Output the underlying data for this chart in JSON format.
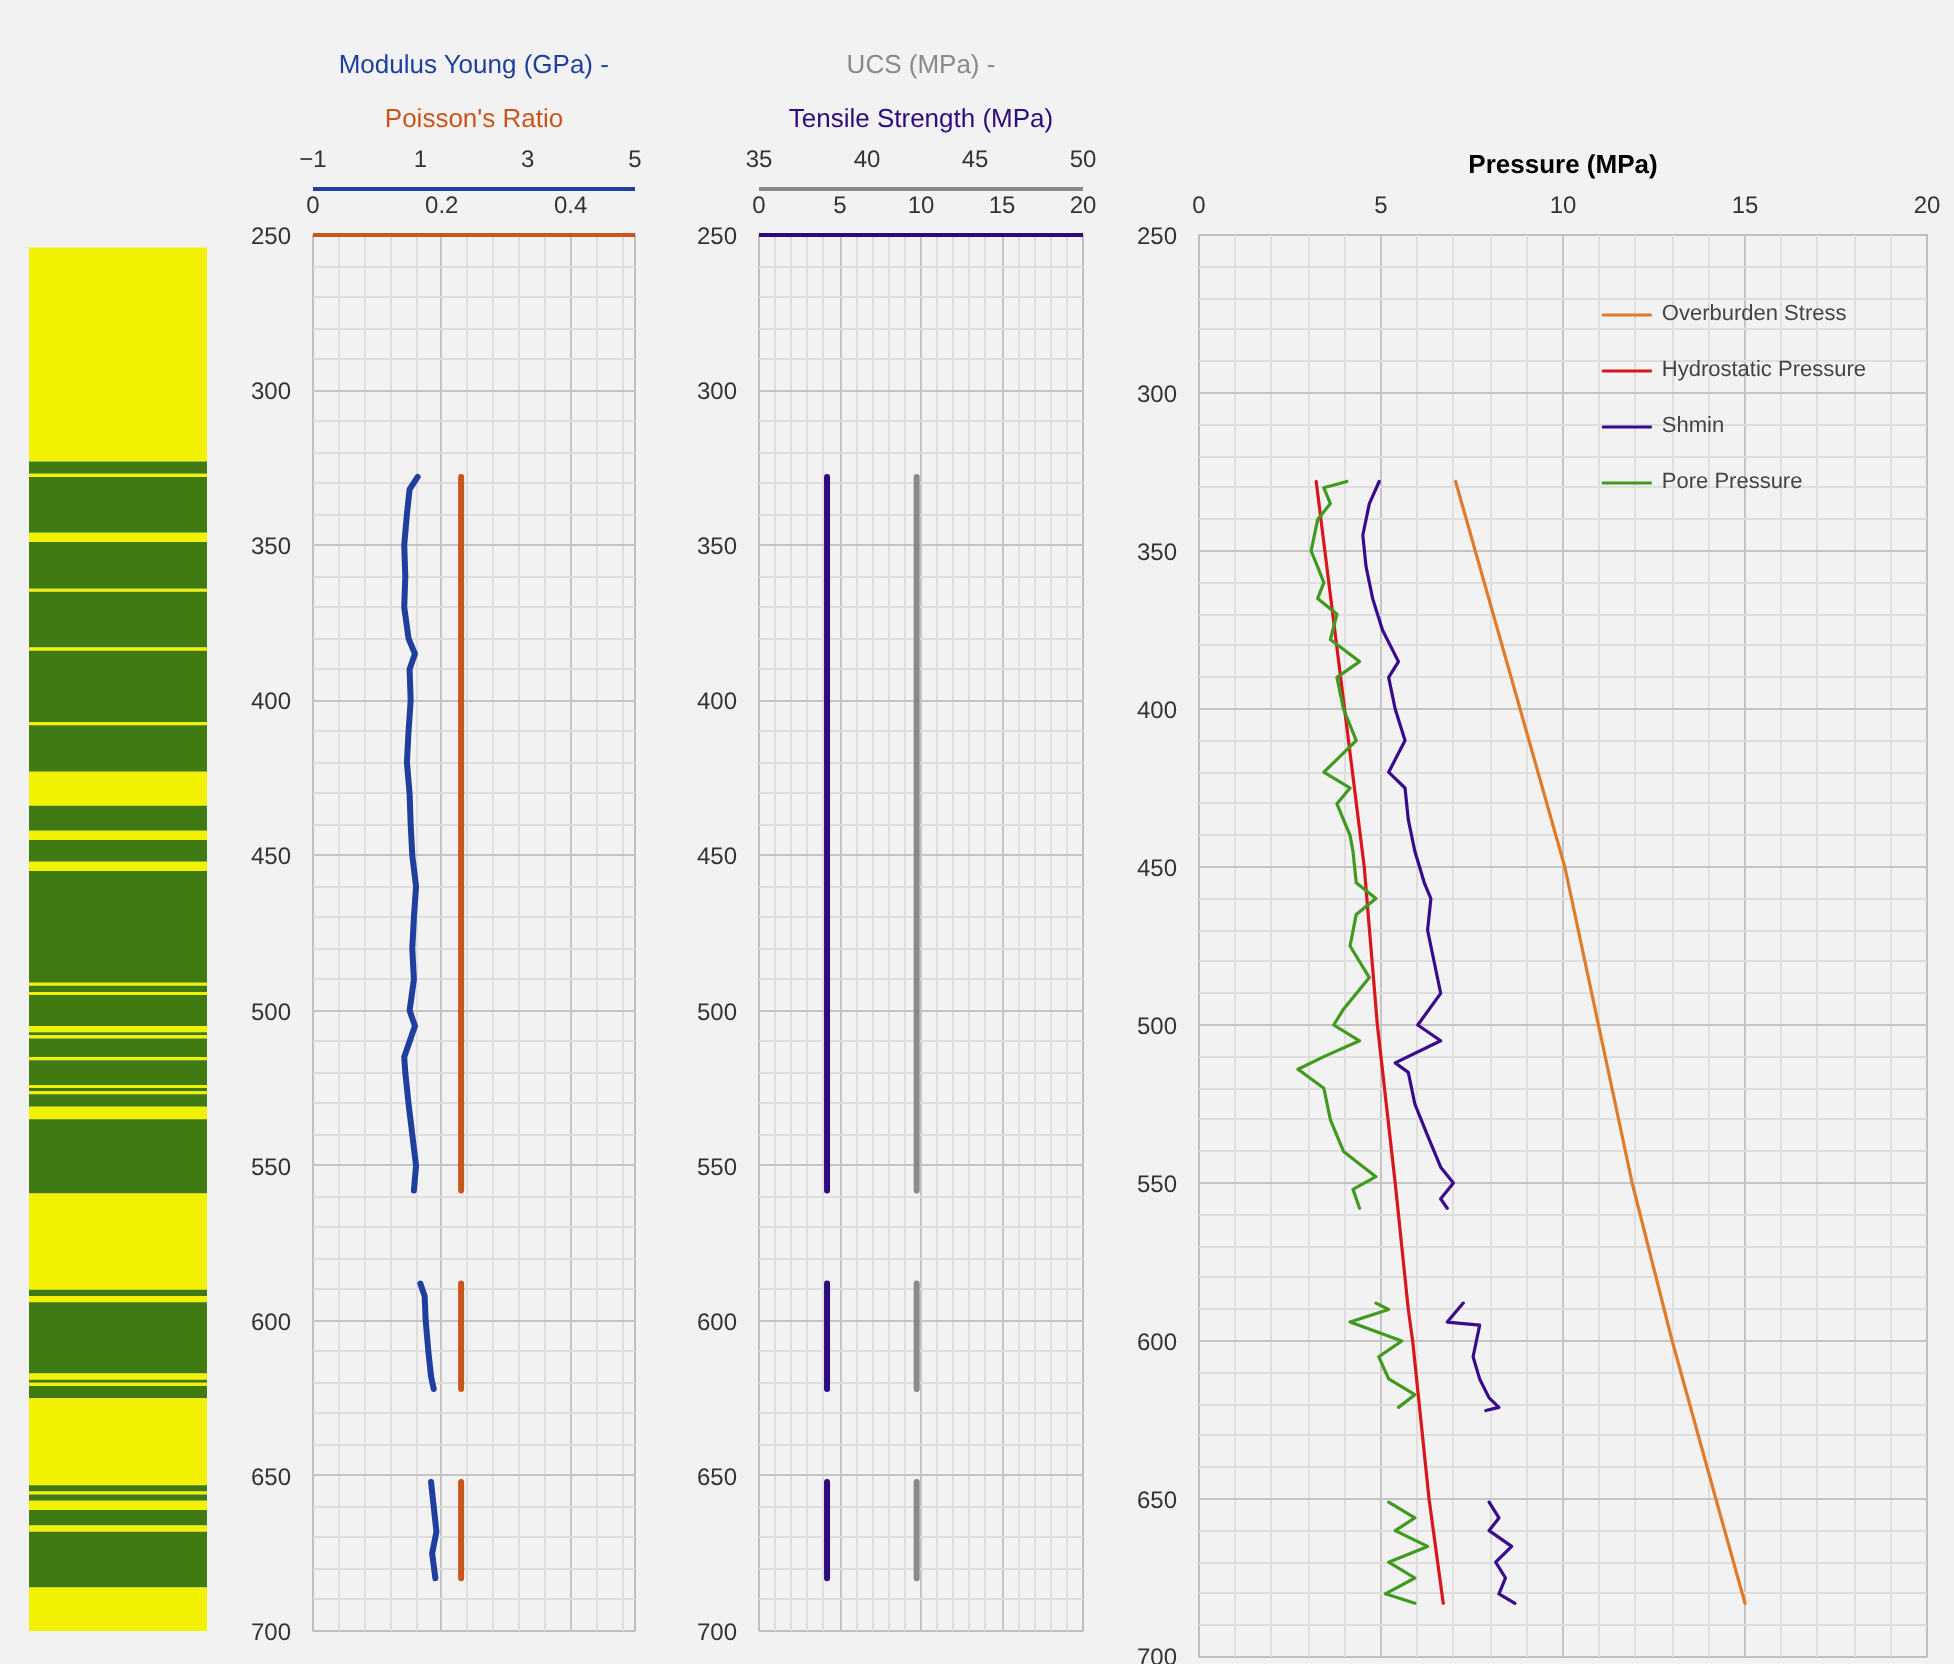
{
  "chart_data": [
    {
      "type": "bar",
      "categories": [
        null
      ],
      "ylim": [
        700,
        250
      ],
      "yticks": [
        250,
        300,
        350,
        400,
        450,
        500,
        550,
        600,
        650,
        700
      ],
      "tick_labels": false,
      "series": [
        {
          "color": "#f2f200",
          "base": [
            254
          ],
          "values": [
            69
          ]
        },
        {
          "color": "#3f7a12",
          "base": [
            323
          ],
          "values": [
            4
          ]
        },
        {
          "color": "#f2f200",
          "base": [
            327
          ],
          "values": [
            1
          ]
        },
        {
          "color": "#3f7a12",
          "base": [
            328
          ],
          "values": [
            18
          ]
        },
        {
          "color": "#f2f200",
          "base": [
            346
          ],
          "values": [
            3
          ]
        },
        {
          "color": "#3f7a12",
          "base": [
            349
          ],
          "values": [
            15
          ]
        },
        {
          "color": "#f2f200",
          "base": [
            364
          ],
          "values": [
            1
          ]
        },
        {
          "color": "#3f7a12",
          "base": [
            365
          ],
          "values": [
            18
          ]
        },
        {
          "color": "#f2f200",
          "base": [
            383
          ],
          "values": [
            1
          ]
        },
        {
          "color": "#3f7a12",
          "base": [
            384
          ],
          "values": [
            23
          ]
        },
        {
          "color": "#f2f200",
          "base": [
            407
          ],
          "values": [
            1
          ]
        },
        {
          "color": "#3f7a12",
          "base": [
            408
          ],
          "values": [
            15
          ]
        },
        {
          "color": "#f2f200",
          "base": [
            423
          ],
          "values": [
            11
          ]
        },
        {
          "color": "#3f7a12",
          "base": [
            434
          ],
          "values": [
            8
          ]
        },
        {
          "color": "#f2f200",
          "base": [
            442
          ],
          "values": [
            3
          ]
        },
        {
          "color": "#3f7a12",
          "base": [
            445
          ],
          "values": [
            7
          ]
        },
        {
          "color": "#f2f200",
          "base": [
            452
          ],
          "values": [
            3
          ]
        },
        {
          "color": "#3f7a12",
          "base": [
            455
          ],
          "values": [
            36
          ]
        },
        {
          "color": "#f2f200",
          "base": [
            491
          ],
          "values": [
            1
          ]
        },
        {
          "color": "#3f7a12",
          "base": [
            492
          ],
          "values": [
            2
          ]
        },
        {
          "color": "#f2f200",
          "base": [
            494
          ],
          "values": [
            1
          ]
        },
        {
          "color": "#3f7a12",
          "base": [
            495
          ],
          "values": [
            10
          ]
        },
        {
          "color": "#f2f200",
          "base": [
            505
          ],
          "values": [
            2
          ]
        },
        {
          "color": "#3f7a12",
          "base": [
            507
          ],
          "values": [
            1
          ]
        },
        {
          "color": "#f2f200",
          "base": [
            508
          ],
          "values": [
            1
          ]
        },
        {
          "color": "#3f7a12",
          "base": [
            509
          ],
          "values": [
            6
          ]
        },
        {
          "color": "#f2f200",
          "base": [
            515
          ],
          "values": [
            1
          ]
        },
        {
          "color": "#3f7a12",
          "base": [
            516
          ],
          "values": [
            8
          ]
        },
        {
          "color": "#f2f200",
          "base": [
            524
          ],
          "values": [
            1
          ]
        },
        {
          "color": "#3f7a12",
          "base": [
            525
          ],
          "values": [
            1
          ]
        },
        {
          "color": "#f2f200",
          "base": [
            526
          ],
          "values": [
            1
          ]
        },
        {
          "color": "#3f7a12",
          "base": [
            527
          ],
          "values": [
            4
          ]
        },
        {
          "color": "#f2f200",
          "base": [
            531
          ],
          "values": [
            4
          ]
        },
        {
          "color": "#3f7a12",
          "base": [
            535
          ],
          "values": [
            24
          ]
        },
        {
          "color": "#f2f200",
          "base": [
            559
          ],
          "values": [
            31
          ]
        },
        {
          "color": "#3f7a12",
          "base": [
            590
          ],
          "values": [
            2
          ]
        },
        {
          "color": "#f2f200",
          "base": [
            592
          ],
          "values": [
            2
          ]
        },
        {
          "color": "#3f7a12",
          "base": [
            594
          ],
          "values": [
            23
          ]
        },
        {
          "color": "#f2f200",
          "base": [
            617
          ],
          "values": [
            2
          ]
        },
        {
          "color": "#3f7a12",
          "base": [
            619
          ],
          "values": [
            1
          ]
        },
        {
          "color": "#f2f200",
          "base": [
            620
          ],
          "values": [
            1
          ]
        },
        {
          "color": "#3f7a12",
          "base": [
            621
          ],
          "values": [
            4
          ]
        },
        {
          "color": "#f2f200",
          "base": [
            625
          ],
          "values": [
            28
          ]
        },
        {
          "color": "#3f7a12",
          "base": [
            653
          ],
          "values": [
            2
          ]
        },
        {
          "color": "#f2f200",
          "base": [
            655
          ],
          "values": [
            1
          ]
        },
        {
          "color": "#3f7a12",
          "base": [
            656
          ],
          "values": [
            2
          ]
        },
        {
          "color": "#f2f200",
          "base": [
            658
          ],
          "values": [
            3
          ]
        },
        {
          "color": "#3f7a12",
          "base": [
            661
          ],
          "values": [
            5
          ]
        },
        {
          "color": "#f2f200",
          "base": [
            666
          ],
          "values": [
            2
          ]
        },
        {
          "color": "#3f7a12",
          "base": [
            668
          ],
          "values": [
            18
          ]
        },
        {
          "color": "#f2f200",
          "base": [
            686
          ],
          "values": [
            14
          ]
        }
      ]
    },
    {
      "type": "line",
      "orientation": "horizontal",
      "xlabel": "Poisson's Ratio",
      "x2label": "Modulus Young (GPa) -",
      "xlim": [
        0,
        0.5
      ],
      "xticks": [
        0,
        0.2,
        0.4
      ],
      "x2lim": [
        -1,
        5
      ],
      "x2ticks": [
        -1,
        1,
        3,
        5
      ],
      "ylim": [
        700,
        250
      ],
      "yticks": [
        250,
        300,
        350,
        400,
        450,
        500,
        550,
        600,
        650,
        700
      ],
      "grid": true,
      "series": [
        {
          "color": "#1f3f9f",
          "axis": "x2",
          "x": [
            328,
            332,
            340,
            350,
            360,
            370,
            380,
            385,
            390,
            400,
            410,
            420,
            430,
            440,
            450,
            460,
            470,
            480,
            490,
            500,
            505,
            515,
            520,
            530,
            540,
            550,
            558,
            573,
            588,
            592,
            600,
            610,
            618,
            622,
            637,
            652,
            660,
            668,
            675,
            683
          ],
          "values": [
            0.95,
            0.8,
            0.75,
            0.7,
            0.72,
            0.7,
            0.78,
            0.9,
            0.8,
            0.82,
            0.78,
            0.75,
            0.8,
            0.82,
            0.85,
            0.92,
            0.88,
            0.85,
            0.88,
            0.8,
            0.9,
            0.7,
            0.72,
            0.78,
            0.85,
            0.92,
            0.88,
            null,
            1.0,
            1.08,
            1.1,
            1.15,
            1.2,
            1.25,
            null,
            1.2,
            1.25,
            1.3,
            1.22,
            1.28
          ]
        },
        {
          "color": "#c8561a",
          "x": [
            328,
            558,
            573,
            588,
            622,
            637,
            652,
            683
          ],
          "values": [
            0.23,
            0.23,
            null,
            0.23,
            0.23,
            null,
            0.23,
            0.23
          ]
        }
      ]
    },
    {
      "type": "line",
      "orientation": "horizontal",
      "xlabel": "Tensile Strength (MPa)",
      "x2label": "UCS (MPa) -",
      "xlim": [
        0,
        20
      ],
      "xticks": [
        0,
        5,
        10,
        15,
        20
      ],
      "x2lim": [
        35,
        50
      ],
      "x2ticks": [
        35,
        40,
        45,
        50
      ],
      "ylim": [
        700,
        250
      ],
      "yticks": [
        250,
        300,
        350,
        400,
        450,
        500,
        550,
        600,
        650,
        700
      ],
      "grid": true,
      "series": [
        {
          "color": "#2e0a7a",
          "x": [
            328,
            558,
            573,
            588,
            622,
            637,
            652,
            683
          ],
          "values": [
            4.2,
            4.2,
            null,
            4.2,
            4.2,
            null,
            4.2,
            4.2
          ]
        },
        {
          "color": "#8a8a8a",
          "axis": "x2",
          "x": [
            328,
            558,
            573,
            588,
            622,
            637,
            652,
            683
          ],
          "values": [
            42.3,
            42.3,
            null,
            42.3,
            42.3,
            null,
            42.3,
            42.3
          ]
        }
      ]
    },
    {
      "type": "line",
      "orientation": "horizontal",
      "xlabel": "Pressure (MPa)",
      "xlim": [
        0,
        20
      ],
      "xticks": [
        0,
        5,
        10,
        15,
        20
      ],
      "ylim": [
        700,
        250
      ],
      "yticks": [
        250,
        300,
        350,
        400,
        450,
        500,
        550,
        600,
        650,
        700
      ],
      "grid": true,
      "legend": "top right",
      "series": [
        {
          "name": "Overburden Stress",
          "color": "#e07b2a",
          "x": [
            328,
            450,
            550,
            600,
            650,
            683
          ],
          "values": [
            7.05,
            10.05,
            11.9,
            13.0,
            14.2,
            15.0
          ]
        },
        {
          "name": "Hydrostatic Pressure",
          "color": "#d8161b",
          "x": [
            328,
            450,
            500,
            550,
            590,
            600,
            650,
            683
          ],
          "values": [
            3.22,
            4.54,
            4.9,
            5.39,
            5.75,
            5.87,
            6.32,
            6.71
          ]
        },
        {
          "name": "Shmin",
          "color": "#3a0a8c",
          "x": [
            328,
            335,
            345,
            355,
            365,
            375,
            385,
            390,
            400,
            410,
            420,
            425,
            435,
            445,
            455,
            460,
            470,
            480,
            490,
            500,
            505,
            512,
            515,
            525,
            535,
            545,
            550,
            555,
            558,
            573,
            588,
            594,
            595,
            605,
            612,
            618,
            621,
            622,
            637,
            651,
            656,
            660,
            665,
            670,
            675,
            680,
            683
          ],
          "values": [
            4.95,
            4.68,
            4.5,
            4.59,
            4.77,
            5.04,
            5.48,
            5.21,
            5.39,
            5.66,
            5.21,
            5.66,
            5.75,
            5.93,
            6.19,
            6.37,
            6.28,
            6.46,
            6.64,
            6.01,
            6.64,
            5.39,
            5.75,
            5.93,
            6.28,
            6.64,
            6.99,
            6.64,
            6.82,
            null,
            7.26,
            6.82,
            7.71,
            7.53,
            7.71,
            7.97,
            8.24,
            7.88,
            null,
            7.97,
            8.24,
            7.97,
            8.59,
            8.15,
            8.42,
            8.24,
            8.68
          ]
        },
        {
          "name": "Pore Pressure",
          "color": "#3f9a1e",
          "x": [
            328,
            330,
            335,
            340,
            350,
            355,
            360,
            365,
            370,
            378,
            385,
            390,
            400,
            410,
            420,
            425,
            430,
            440,
            445,
            455,
            460,
            465,
            475,
            485,
            495,
            500,
            505,
            510,
            514,
            520,
            530,
            540,
            548,
            552,
            558,
            573,
            588,
            590,
            594,
            600,
            605,
            612,
            617,
            621,
            637,
            651,
            656,
            660,
            665,
            670,
            675,
            680,
            683
          ],
          "values": [
            4.06,
            3.43,
            3.61,
            3.26,
            3.08,
            3.26,
            3.43,
            3.26,
            3.79,
            3.61,
            4.41,
            3.79,
            3.97,
            4.32,
            3.43,
            4.15,
            3.79,
            4.15,
            4.23,
            4.32,
            4.86,
            4.32,
            4.15,
            4.68,
            3.97,
            3.7,
            4.41,
            3.43,
            2.72,
            3.43,
            3.61,
            3.97,
            4.86,
            4.23,
            4.41,
            null,
            4.86,
            5.21,
            4.15,
            5.57,
            4.94,
            5.21,
            5.93,
            5.48,
            null,
            5.21,
            5.93,
            5.39,
            6.28,
            5.21,
            5.93,
            5.12,
            5.93
          ]
        }
      ]
    }
  ]
}
